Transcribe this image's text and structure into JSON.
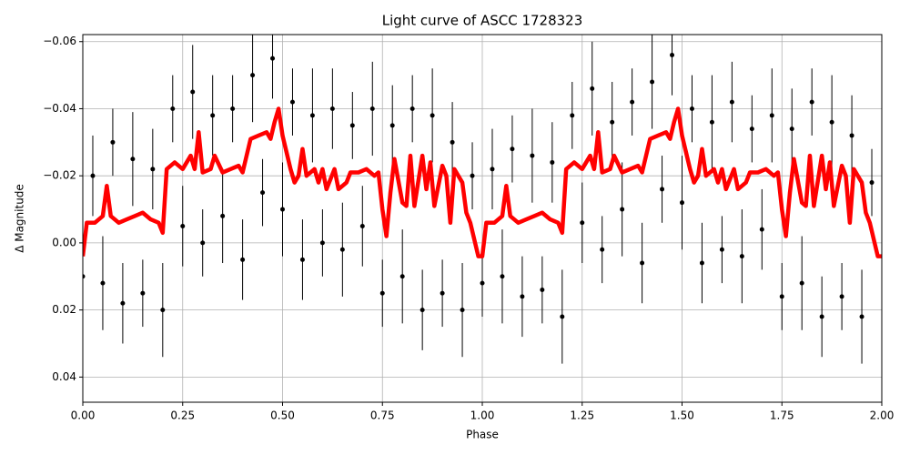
{
  "chart_data": {
    "type": "scatter",
    "title": "Light curve of ASCC 1728323",
    "x_label": "Phase",
    "y_label": "Δ Magnitude",
    "xlim": [
      0,
      2
    ],
    "ylim": [
      -0.0621,
      0.0475
    ],
    "invert_y": true,
    "grid": true,
    "xticks": [
      {
        "value": 0,
        "label": "0.00"
      },
      {
        "value": 0.25,
        "label": "0.25"
      },
      {
        "value": 0.5,
        "label": "0.50"
      },
      {
        "value": 0.75,
        "label": "0.75"
      },
      {
        "value": 1,
        "label": "1.00"
      },
      {
        "value": 1.25,
        "label": "1.25"
      },
      {
        "value": 1.5,
        "label": "1.50"
      },
      {
        "value": 1.75,
        "label": "1.75"
      },
      {
        "value": 2,
        "label": "2.00"
      }
    ],
    "yticks": [
      {
        "value": -0.06,
        "label": "−0.06"
      },
      {
        "value": -0.04,
        "label": "−0.04"
      },
      {
        "value": -0.02,
        "label": "−0.02"
      },
      {
        "value": 0,
        "label": "0.00"
      },
      {
        "value": 0.02,
        "label": "0.02"
      },
      {
        "value": 0.04,
        "label": "0.04"
      }
    ],
    "points": {
      "color": "#000000",
      "x": [
        0,
        0.025,
        0.05,
        0.075,
        0.1,
        0.125,
        0.15,
        0.175,
        0.2,
        0.225,
        0.25,
        0.275,
        0.3,
        0.325,
        0.35,
        0.375,
        0.4,
        0.425,
        0.45,
        0.475,
        0.5,
        0.525,
        0.55,
        0.575,
        0.6,
        0.625,
        0.65,
        0.675,
        0.7,
        0.725,
        0.75,
        0.775,
        0.8,
        0.825,
        0.85,
        0.875,
        0.9,
        0.925,
        0.95,
        0.975,
        1,
        1.025,
        1.05,
        1.075,
        1.1,
        1.125,
        1.15,
        1.175,
        1.2,
        1.225,
        1.25,
        1.275,
        1.3,
        1.325,
        1.35,
        1.375,
        1.4,
        1.425,
        1.45,
        1.475,
        1.5,
        1.525,
        1.55,
        1.575,
        1.6,
        1.625,
        1.65,
        1.675,
        1.7,
        1.725,
        1.75,
        1.775,
        1.8,
        1.825,
        1.85,
        1.875,
        1.9,
        1.925,
        1.95,
        1.975
      ],
      "y": [
        0.01,
        -0.02,
        0.012,
        -0.03,
        0.018,
        -0.025,
        0.015,
        -0.022,
        0.02,
        -0.04,
        -0.005,
        -0.045,
        0,
        -0.038,
        -0.008,
        -0.04,
        0.005,
        -0.05,
        -0.015,
        -0.055,
        -0.01,
        -0.042,
        0.005,
        -0.038,
        0,
        -0.04,
        0.002,
        -0.035,
        -0.005,
        -0.04,
        0.015,
        -0.035,
        0.01,
        -0.04,
        0.02,
        -0.038,
        0.015,
        -0.03,
        0.02,
        -0.02,
        0.012,
        -0.022,
        0.01,
        -0.028,
        0.016,
        -0.026,
        0.014,
        -0.024,
        0.022,
        -0.038,
        -0.006,
        -0.046,
        0.002,
        -0.036,
        -0.01,
        -0.042,
        0.006,
        -0.048,
        -0.016,
        -0.056,
        -0.012,
        -0.04,
        0.006,
        -0.036,
        0.002,
        -0.042,
        0.004,
        -0.034,
        -0.004,
        -0.038,
        0.016,
        -0.034,
        0.012,
        -0.042,
        0.022,
        -0.036,
        0.016,
        -0.032,
        0.022,
        -0.018
      ],
      "yerr": [
        0.01,
        0.012,
        0.014,
        0.01,
        0.012,
        0.014,
        0.01,
        0.012,
        0.014,
        0.01,
        0.012,
        0.014,
        0.01,
        0.012,
        0.014,
        0.01,
        0.012,
        0.014,
        0.01,
        0.012,
        0.014,
        0.01,
        0.012,
        0.014,
        0.01,
        0.012,
        0.014,
        0.01,
        0.012,
        0.014,
        0.01,
        0.012,
        0.014,
        0.01,
        0.012,
        0.014,
        0.01,
        0.012,
        0.014,
        0.01,
        0.01,
        0.012,
        0.014,
        0.01,
        0.012,
        0.014,
        0.01,
        0.012,
        0.014,
        0.01,
        0.012,
        0.014,
        0.01,
        0.012,
        0.014,
        0.01,
        0.012,
        0.014,
        0.01,
        0.012,
        0.014,
        0.01,
        0.012,
        0.014,
        0.01,
        0.012,
        0.014,
        0.01,
        0.012,
        0.014,
        0.01,
        0.012,
        0.014,
        0.01,
        0.012,
        0.014,
        0.01,
        0.012,
        0.014,
        0.01
      ]
    },
    "curve": {
      "color": "#ff0000",
      "x": [
        0,
        0.01,
        0.03,
        0.05,
        0.06,
        0.07,
        0.09,
        0.11,
        0.13,
        0.15,
        0.17,
        0.19,
        0.2,
        0.21,
        0.23,
        0.25,
        0.27,
        0.28,
        0.29,
        0.3,
        0.32,
        0.33,
        0.35,
        0.37,
        0.39,
        0.4,
        0.42,
        0.44,
        0.46,
        0.47,
        0.48,
        0.49,
        0.5,
        0.52,
        0.53,
        0.54,
        0.55,
        0.56,
        0.58,
        0.59,
        0.6,
        0.61,
        0.63,
        0.64,
        0.66,
        0.67,
        0.69,
        0.71,
        0.73,
        0.74,
        0.75,
        0.76,
        0.77,
        0.78,
        0.8,
        0.81,
        0.82,
        0.83,
        0.85,
        0.86,
        0.87,
        0.88,
        0.9,
        0.91,
        0.92,
        0.93,
        0.95,
        0.96,
        0.97,
        0.98,
        0.99,
        1,
        1.01,
        1.03,
        1.05,
        1.06,
        1.07,
        1.09,
        1.11,
        1.13,
        1.15,
        1.17,
        1.19,
        1.2,
        1.21,
        1.23,
        1.25,
        1.27,
        1.28,
        1.29,
        1.3,
        1.32,
        1.33,
        1.35,
        1.37,
        1.39,
        1.4,
        1.42,
        1.44,
        1.46,
        1.47,
        1.48,
        1.49,
        1.5,
        1.52,
        1.53,
        1.54,
        1.55,
        1.56,
        1.58,
        1.59,
        1.6,
        1.61,
        1.63,
        1.64,
        1.66,
        1.67,
        1.69,
        1.71,
        1.73,
        1.74,
        1.75,
        1.76,
        1.77,
        1.78,
        1.8,
        1.81,
        1.82,
        1.83,
        1.85,
        1.86,
        1.87,
        1.88,
        1.9,
        1.91,
        1.92,
        1.93,
        1.95,
        1.96,
        1.97,
        1.98,
        1.99,
        2
      ],
      "y": [
        0.004,
        -0.006,
        -0.006,
        -0.008,
        -0.017,
        -0.008,
        -0.006,
        -0.007,
        -0.008,
        -0.009,
        -0.007,
        -0.006,
        -0.003,
        -0.022,
        -0.024,
        -0.022,
        -0.026,
        -0.022,
        -0.033,
        -0.021,
        -0.022,
        -0.026,
        -0.021,
        -0.022,
        -0.023,
        -0.021,
        -0.031,
        -0.032,
        -0.033,
        -0.031,
        -0.036,
        -0.04,
        -0.032,
        -0.022,
        -0.018,
        -0.02,
        -0.028,
        -0.02,
        -0.022,
        -0.018,
        -0.022,
        -0.016,
        -0.022,
        -0.016,
        -0.018,
        -0.021,
        -0.021,
        -0.022,
        -0.02,
        -0.021,
        -0.01,
        -0.002,
        -0.015,
        -0.025,
        -0.012,
        -0.011,
        -0.026,
        -0.011,
        -0.026,
        -0.016,
        -0.024,
        -0.011,
        -0.023,
        -0.02,
        -0.006,
        -0.022,
        -0.018,
        -0.009,
        -0.006,
        -0.001,
        0.004,
        0.004,
        -0.006,
        -0.006,
        -0.008,
        -0.017,
        -0.008,
        -0.006,
        -0.007,
        -0.008,
        -0.009,
        -0.007,
        -0.006,
        -0.003,
        -0.022,
        -0.024,
        -0.022,
        -0.026,
        -0.022,
        -0.033,
        -0.021,
        -0.022,
        -0.026,
        -0.021,
        -0.022,
        -0.023,
        -0.021,
        -0.031,
        -0.032,
        -0.033,
        -0.031,
        -0.036,
        -0.04,
        -0.032,
        -0.022,
        -0.018,
        -0.02,
        -0.028,
        -0.02,
        -0.022,
        -0.018,
        -0.022,
        -0.016,
        -0.022,
        -0.016,
        -0.018,
        -0.021,
        -0.021,
        -0.022,
        -0.02,
        -0.021,
        -0.01,
        -0.002,
        -0.015,
        -0.025,
        -0.012,
        -0.011,
        -0.026,
        -0.011,
        -0.026,
        -0.016,
        -0.024,
        -0.011,
        -0.023,
        -0.02,
        -0.006,
        -0.022,
        -0.018,
        -0.009,
        -0.006,
        -0.001,
        0.004,
        0.004
      ]
    }
  }
}
